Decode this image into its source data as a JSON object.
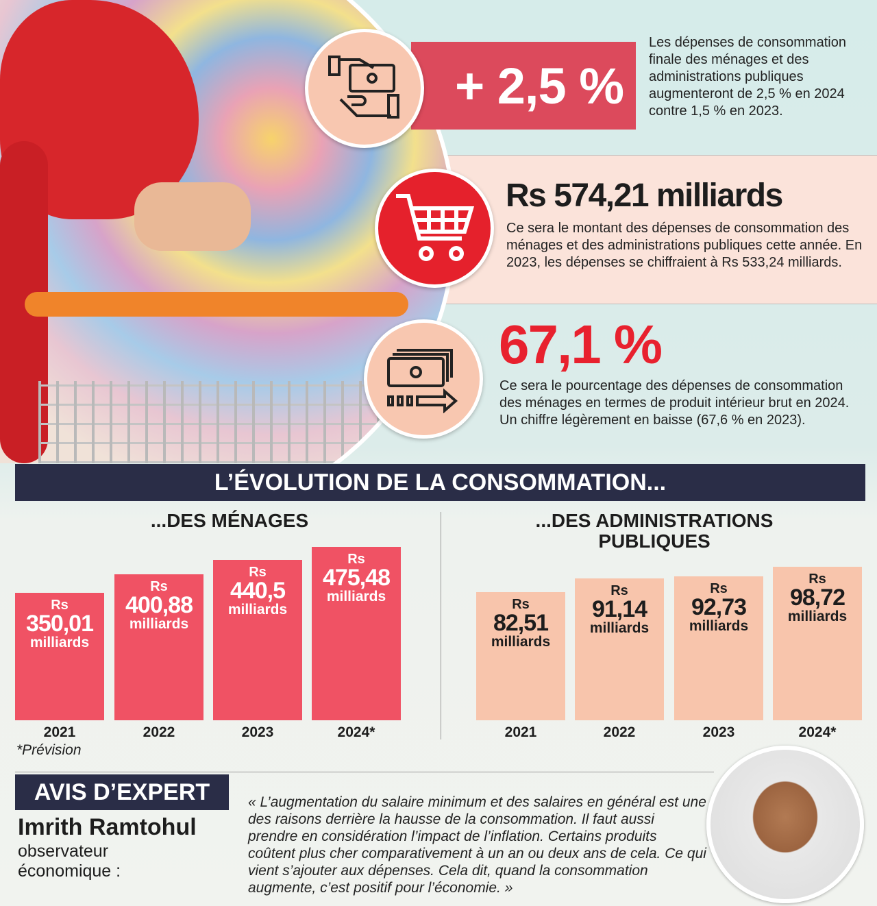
{
  "stats": [
    {
      "value": "+ 2,5 %",
      "icon": "money-hand-icon",
      "text": "Les dépenses de consommation finale des ménages et des administrations publiques augmenteront de 2,5 % en 2024 contre 1,5 % en 2023."
    },
    {
      "value": "Rs 574,21 milliards",
      "icon": "shopping-cart-icon",
      "text": "Ce sera le montant des dépenses de consommation des ménages et des administrations publiques cette année. En 2023, les dépenses se chiffraient à Rs 533,24 milliards."
    },
    {
      "value": "67,1 %",
      "icon": "cash-arrow-icon",
      "text": "Ce sera le pourcentage des dépenses de consommation des ménages en termes de produit intérieur brut en 2024. Un chiffre légèrement en baisse (67,6 % en 2023)."
    }
  ],
  "banner": "L’ÉVOLUTION DE LA CONSOMMATION...",
  "chart_data": [
    {
      "type": "bar",
      "title": "...DES MÉNAGES",
      "categories": [
        "2021",
        "2022",
        "2023",
        "2024*"
      ],
      "values": [
        350.01,
        400.88,
        440.5,
        475.48
      ],
      "labels": [
        "350,01",
        "400,88",
        "440,5",
        "475,48"
      ],
      "prefix": "Rs",
      "unit": "milliards",
      "color": "#f05264",
      "note": "*Prévision"
    },
    {
      "type": "bar",
      "title": "...DES ADMINISTRATIONS PUBLIQUES",
      "categories": [
        "2021",
        "2022",
        "2023",
        "2024*"
      ],
      "values": [
        82.51,
        91.14,
        92.73,
        98.72
      ],
      "labels": [
        "82,51",
        "91,14",
        "92,73",
        "98,72"
      ],
      "prefix": "Rs",
      "unit": "milliards",
      "color": "#f8c5ac"
    }
  ],
  "expert": {
    "heading": "AVIS D’EXPERT",
    "name": "Imrith Ramtohul",
    "role": "observateur économique :",
    "quote": "« L’augmentation du salaire minimum et des salaires en général est une des raisons derrière la hausse de la consommation. Il faut aussi prendre en considération l’impact de l’inflation. Certains produits coûtent plus cher comparativement à un an ou deux ans de cela. Ce qui vient s’ajouter aux dépenses. Cela dit, quand la consommation augmente, c’est positif pour l’économie. »"
  }
}
